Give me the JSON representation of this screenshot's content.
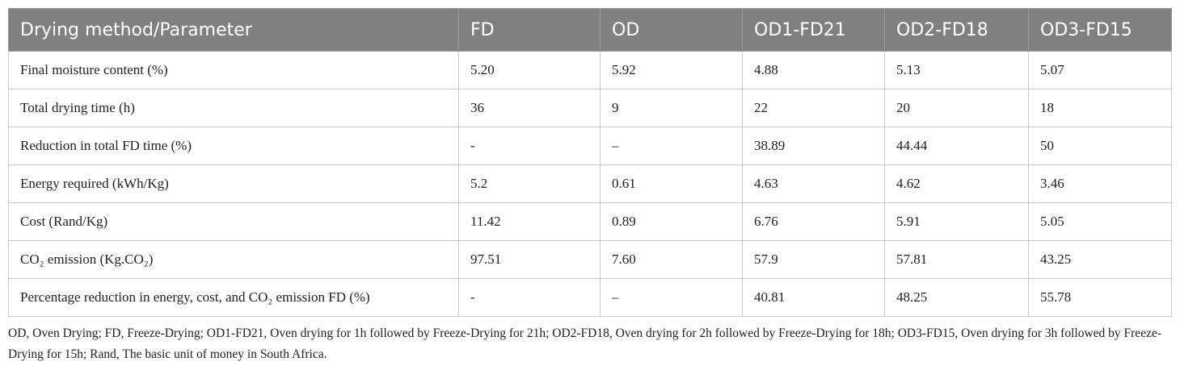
{
  "table": {
    "header": [
      "Drying method/Parameter",
      "FD",
      "OD",
      "OD1-FD21",
      "OD2-FD18",
      "OD3-FD15"
    ],
    "rows": [
      [
        "Final moisture content (%)",
        "5.20",
        "5.92",
        "4.88",
        "5.13",
        "5.07"
      ],
      [
        "Total drying time (h)",
        "36",
        "9",
        "22",
        "20",
        "18"
      ],
      [
        "Reduction in total FD time (%)",
        "-",
        "–",
        "38.89",
        "44.44",
        "50"
      ],
      [
        "Energy required (kWh/Kg)",
        "5.2",
        "0.61",
        "4.63",
        "4.62",
        "3.46"
      ],
      [
        "Cost (Rand/Kg)",
        "11.42",
        "0.89",
        "6.76",
        "5.91",
        "5.05"
      ],
      [
        "CO₂ emission (Kg.CO₂)",
        "97.51",
        "7.60",
        "57.9",
        "57.81",
        "43.25"
      ],
      [
        "Percentage reduction in energy, cost, and CO₂ emission FD (%)",
        "-",
        "–",
        "40.81",
        "48.25",
        "55.78"
      ]
    ]
  },
  "footnote": "OD, Oven Drying; FD, Freeze-Drying; OD1-FD21, Oven drying for 1h followed by Freeze-Drying for 21h; OD2-FD18, Oven drying for 2h followed by Freeze-Drying for 18h; OD3-FD15, Oven drying for 3h followed by Freeze-Drying for 15h; Rand, The basic unit of money in South Africa."
}
